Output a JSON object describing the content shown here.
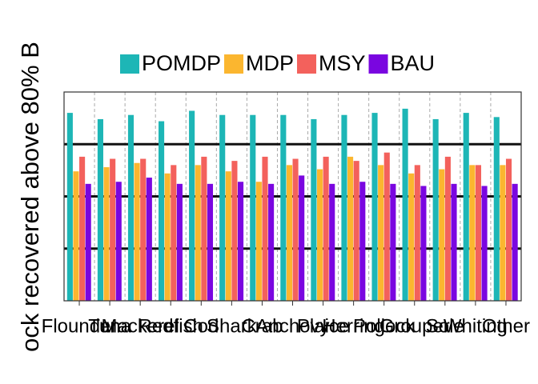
{
  "chart_data": {
    "type": "bar",
    "y_label": "ock recovered above 80% B",
    "categories": [
      "Flounder",
      "Tuna",
      "Mackerel",
      "Redfish",
      "Cod",
      "Shark",
      "Crab",
      "Anchovy",
      "Plaice",
      "Herring",
      "Pollock",
      "Grouper",
      "Sole",
      "Whiting",
      "Other"
    ],
    "series": [
      {
        "name": "POMDP",
        "color": "#1db6b6",
        "values": [
          0.9,
          0.87,
          0.89,
          0.86,
          0.91,
          0.89,
          0.89,
          0.89,
          0.87,
          0.89,
          0.9,
          0.92,
          0.87,
          0.9,
          0.88
        ]
      },
      {
        "name": "MDP",
        "color": "#fbb62f",
        "values": [
          0.62,
          0.64,
          0.66,
          0.61,
          0.65,
          0.62,
          0.57,
          0.65,
          0.63,
          0.69,
          0.65,
          0.61,
          0.63,
          0.65,
          0.65
        ]
      },
      {
        "name": "MSY",
        "color": "#f3615c",
        "values": [
          0.69,
          0.68,
          0.68,
          0.65,
          0.69,
          0.67,
          0.69,
          0.68,
          0.69,
          0.67,
          0.71,
          0.65,
          0.69,
          0.65,
          0.68
        ]
      },
      {
        "name": "BAU",
        "color": "#7a06e0",
        "values": [
          0.56,
          0.57,
          0.59,
          0.56,
          0.56,
          0.57,
          0.56,
          0.6,
          0.56,
          0.57,
          0.56,
          0.55,
          0.56,
          0.55,
          0.56
        ]
      }
    ],
    "ylim": [
      0,
      1
    ],
    "hlines": [
      0.25,
      0.5,
      0.75
    ],
    "legend": "top"
  }
}
